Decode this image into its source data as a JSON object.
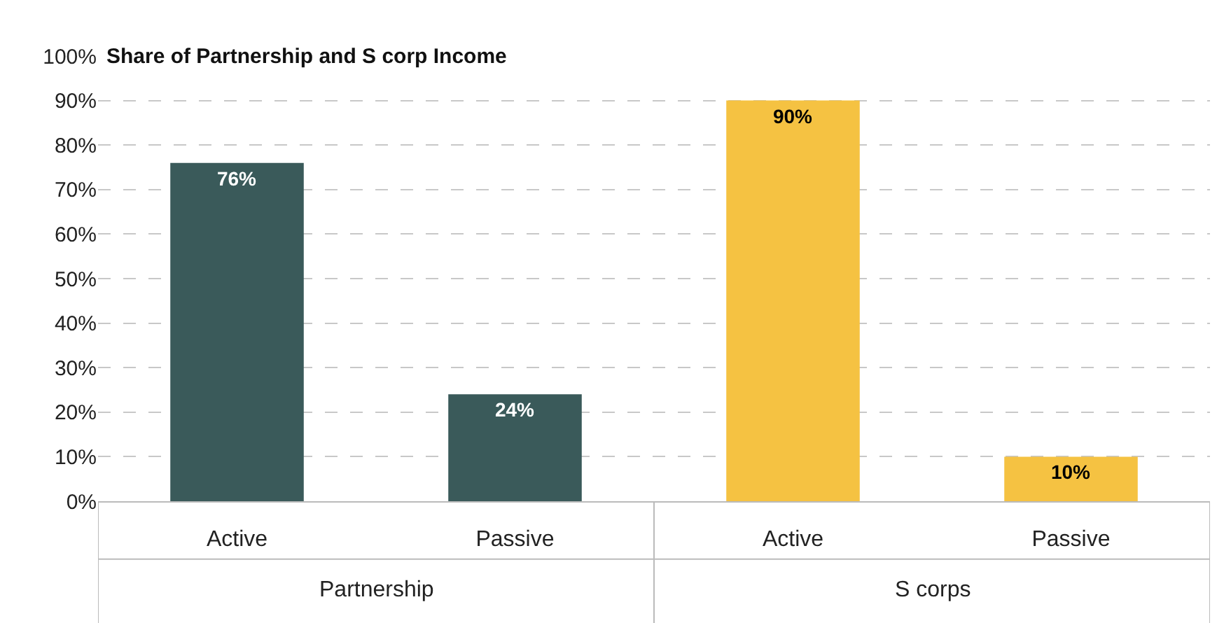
{
  "chart_data": {
    "type": "bar",
    "title": "Share of Partnership and S corp Income",
    "categories": [
      "Active",
      "Passive",
      "Active",
      "Passive"
    ],
    "values": [
      76,
      24,
      90,
      10
    ],
    "colors": [
      "#3a5a5a",
      "#3a5a5a",
      "#f5c242",
      "#f5c242"
    ],
    "value_labels": [
      "76%",
      "24%",
      "90%",
      "10%"
    ],
    "annotations": [
      "Partnership",
      "S corps"
    ],
    "ylim": [
      0,
      100
    ],
    "yticks": [
      {
        "value": 0,
        "label": "0%"
      },
      {
        "value": 10,
        "label": "10%"
      },
      {
        "value": 20,
        "label": "20%"
      },
      {
        "value": 30,
        "label": "30%"
      },
      {
        "value": 40,
        "label": "40%"
      },
      {
        "value": 50,
        "label": "50%"
      },
      {
        "value": 60,
        "label": "60%"
      },
      {
        "value": 70,
        "label": "70%"
      },
      {
        "value": 80,
        "label": "80%"
      },
      {
        "value": 90,
        "label": "90%"
      },
      {
        "value": 100,
        "label": "100%"
      }
    ],
    "grid": "y"
  }
}
